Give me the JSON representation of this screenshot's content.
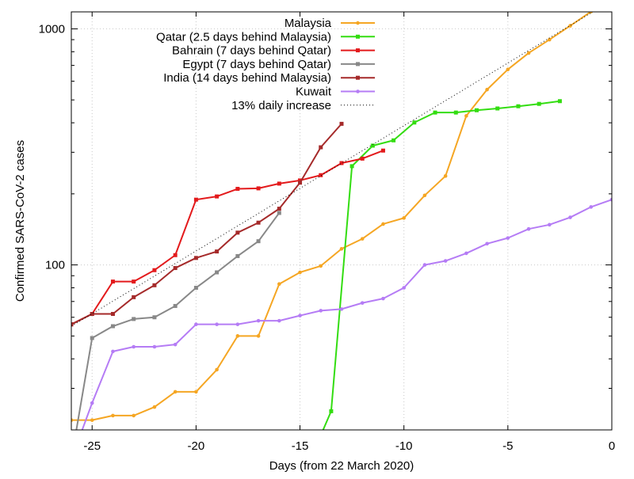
{
  "chart_data": {
    "type": "line",
    "title": "",
    "xlabel": "Days (from 22 March 2020)",
    "ylabel": "Confirmed SARS-CoV-2 cases",
    "xlim": [
      -26,
      0
    ],
    "ylim": [
      20,
      1180
    ],
    "yscale": "log",
    "x_ticks": [
      -25,
      -20,
      -15,
      -10,
      -5,
      0
    ],
    "x_tick_labels": [
      "-25",
      "-20",
      "-15",
      "-10",
      "-5",
      "0"
    ],
    "y_ticks": [
      100,
      1000
    ],
    "y_tick_labels": [
      "100",
      "1000"
    ],
    "y_minor_ticks": [
      20,
      30,
      40,
      50,
      60,
      70,
      80,
      90,
      200,
      300,
      400,
      500,
      600,
      700,
      800,
      900
    ],
    "grid": true,
    "legend_position": "top-right",
    "series": [
      {
        "name": "Malaysia",
        "color": "#f5a623",
        "marker": "circle",
        "points": [
          [
            -26,
            22
          ],
          [
            -25,
            22
          ],
          [
            -24,
            23
          ],
          [
            -23,
            23
          ],
          [
            -22,
            25
          ],
          [
            -21,
            29
          ],
          [
            -20,
            29
          ],
          [
            -19,
            36
          ],
          [
            -18,
            50
          ],
          [
            -17,
            50
          ],
          [
            -16,
            83
          ],
          [
            -15,
            93
          ],
          [
            -14,
            99
          ],
          [
            -13,
            117
          ],
          [
            -12,
            129
          ],
          [
            -11,
            149
          ],
          [
            -10,
            158
          ],
          [
            -9,
            197
          ],
          [
            -8,
            238
          ],
          [
            -7,
            428
          ],
          [
            -6,
            553
          ],
          [
            -5,
            673
          ],
          [
            -4,
            790
          ],
          [
            -3,
            900
          ],
          [
            -2,
            1030
          ],
          [
            -1,
            1183
          ]
        ]
      },
      {
        "name": "Qatar (2.5 days behind Malaysia)",
        "color": "#33dd11",
        "marker": "square",
        "points": [
          [
            -14.5,
            15
          ],
          [
            -13.5,
            24
          ],
          [
            -12.5,
            262
          ],
          [
            -11.5,
            320
          ],
          [
            -10.5,
            337
          ],
          [
            -9.5,
            401
          ],
          [
            -8.5,
            442
          ],
          [
            -7.5,
            442
          ],
          [
            -6.5,
            452
          ],
          [
            -5.5,
            460
          ],
          [
            -4.5,
            470
          ],
          [
            -3.5,
            481
          ],
          [
            -2.5,
            494
          ]
        ]
      },
      {
        "name": "Bahrain (7 days behind Qatar)",
        "color": "#e31a1c",
        "marker": "square",
        "points": [
          [
            -26,
            56
          ],
          [
            -25,
            62
          ],
          [
            -24,
            85
          ],
          [
            -23,
            85
          ],
          [
            -22,
            95
          ],
          [
            -21,
            110
          ],
          [
            -20,
            189
          ],
          [
            -19,
            195
          ],
          [
            -18,
            210
          ],
          [
            -17,
            211
          ],
          [
            -16,
            221
          ],
          [
            -15,
            228
          ],
          [
            -14,
            240
          ],
          [
            -13,
            270
          ],
          [
            -12,
            282
          ],
          [
            -11,
            305
          ]
        ]
      },
      {
        "name": "Egypt (7 days behind Qatar)",
        "color": "#888888",
        "marker": "square",
        "points": [
          [
            -26,
            15
          ],
          [
            -25,
            49
          ],
          [
            -24,
            55
          ],
          [
            -23,
            59
          ],
          [
            -22,
            60
          ],
          [
            -21,
            67
          ],
          [
            -20,
            80
          ],
          [
            -19,
            93
          ],
          [
            -18,
            109
          ],
          [
            -17,
            126
          ],
          [
            -16,
            166
          ]
        ]
      },
      {
        "name": "India (14 days behind Malaysia)",
        "color": "#a52a2a",
        "marker": "square",
        "points": [
          [
            -26,
            56
          ],
          [
            -25,
            62
          ],
          [
            -24,
            62
          ],
          [
            -23,
            73
          ],
          [
            -22,
            82
          ],
          [
            -21,
            97
          ],
          [
            -20,
            107
          ],
          [
            -19,
            114
          ],
          [
            -18,
            137
          ],
          [
            -17,
            151
          ],
          [
            -16,
            173
          ],
          [
            -15,
            223
          ],
          [
            -14,
            315
          ],
          [
            -13,
            396
          ]
        ]
      },
      {
        "name": "Kuwait",
        "color": "#b57cf5",
        "marker": "circle",
        "points": [
          [
            -26,
            15
          ],
          [
            -25,
            26
          ],
          [
            -24,
            43
          ],
          [
            -23,
            45
          ],
          [
            -22,
            45
          ],
          [
            -21,
            46
          ],
          [
            -20,
            56
          ],
          [
            -19,
            56
          ],
          [
            -18,
            56
          ],
          [
            -17,
            58
          ],
          [
            -16,
            58
          ],
          [
            -15,
            61
          ],
          [
            -14,
            64
          ],
          [
            -13,
            65
          ],
          [
            -12,
            69
          ],
          [
            -11,
            72
          ],
          [
            -10,
            80
          ],
          [
            -9,
            100
          ],
          [
            -8,
            104
          ],
          [
            -7,
            112
          ],
          [
            -6,
            123
          ],
          [
            -5,
            130
          ],
          [
            -4,
            142
          ],
          [
            -3,
            148
          ],
          [
            -2,
            159
          ],
          [
            -1,
            176
          ],
          [
            0,
            189
          ]
        ]
      },
      {
        "name": "13% daily increase",
        "color": "#000000",
        "style": "dotted",
        "points": [
          [
            -26,
            55
          ],
          [
            0,
            1320
          ]
        ]
      }
    ]
  }
}
